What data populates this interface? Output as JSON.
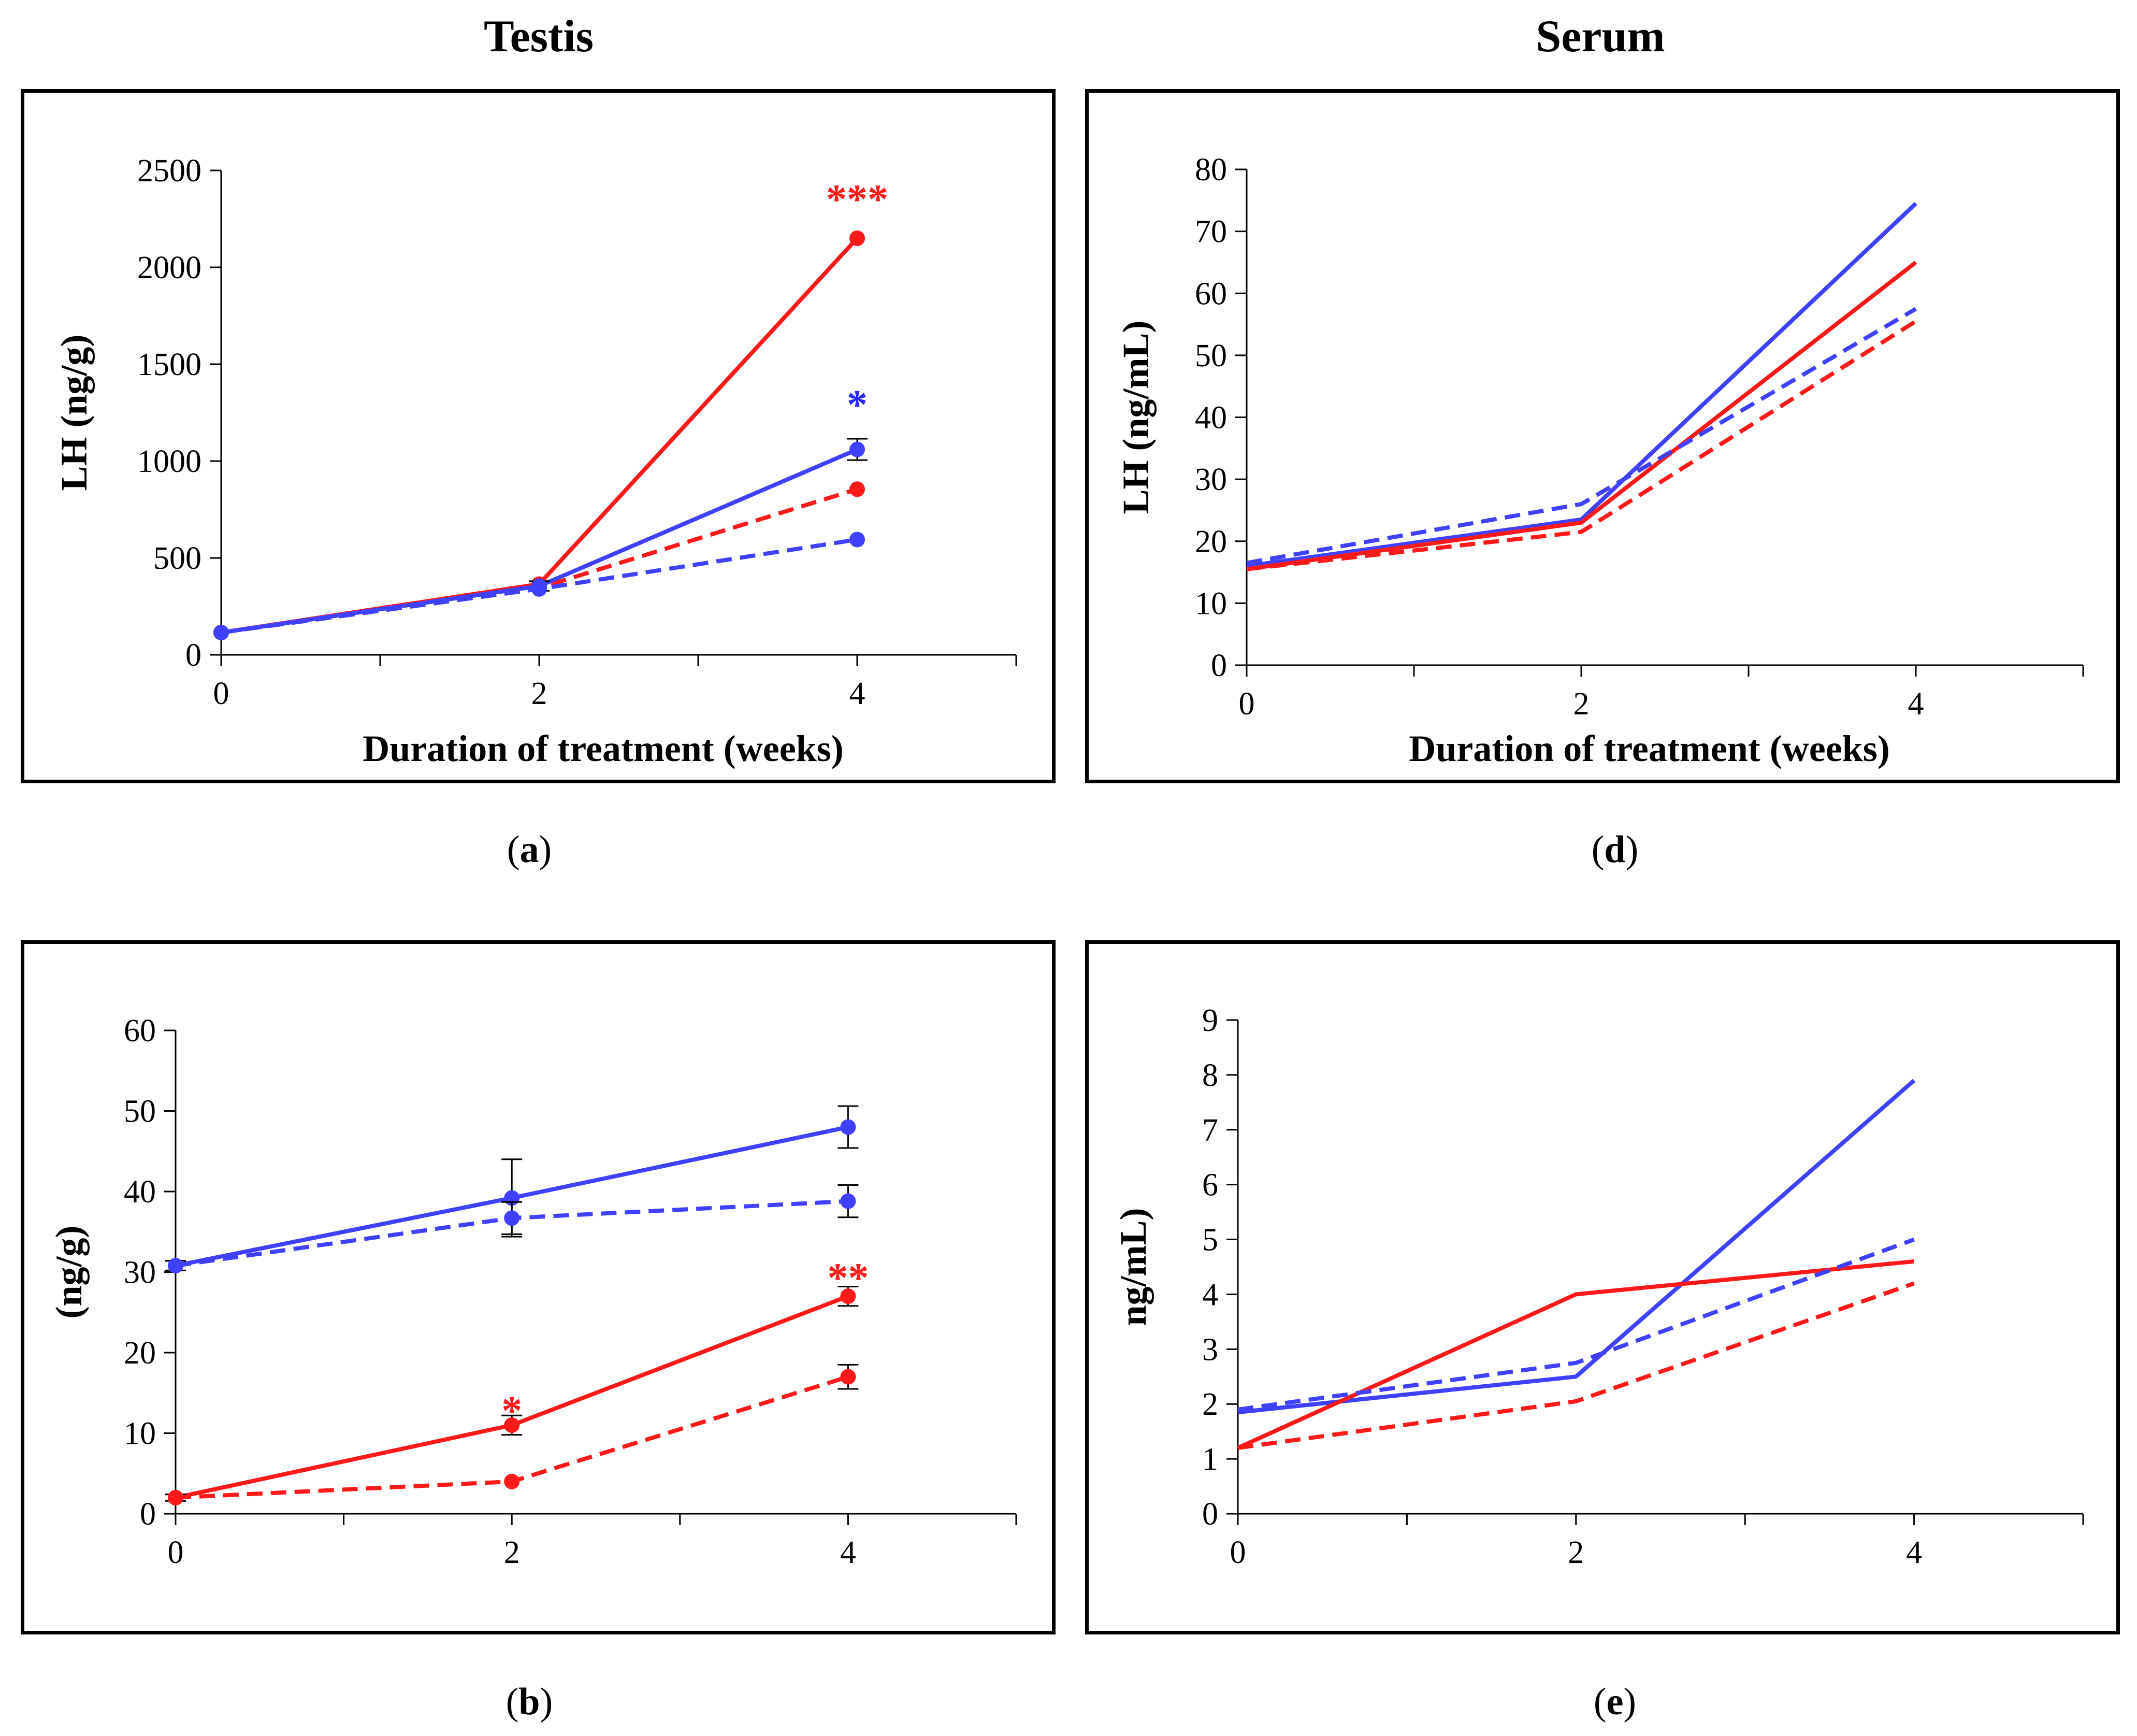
{
  "column_titles": {
    "left": "Testis",
    "right": "Serum"
  },
  "captions": {
    "a": {
      "open": "(",
      "letter": "a",
      "close": ")"
    },
    "b": {
      "open": "(",
      "letter": "b",
      "close": ")"
    },
    "d": {
      "open": "(",
      "letter": "d",
      "close": ")"
    },
    "e": {
      "open": "(",
      "letter": "e",
      "close": ")"
    }
  },
  "colors": {
    "red": "#ff1a1a",
    "blue": "#4040ff",
    "axis": "#000000",
    "sig_red": "#ff1a1a",
    "sig_blue": "#2626ff"
  },
  "chart_data": [
    {
      "id": "a",
      "type": "line",
      "title": "",
      "xlabel": "Duration of treatment (weeks)",
      "ylabel": "LH (ng/g)",
      "xlim": [
        0,
        5
      ],
      "ylim": [
        0,
        2500
      ],
      "xticks": [
        0,
        2,
        4
      ],
      "yticks": [
        0,
        500,
        1000,
        1500,
        2000,
        2500
      ],
      "x_minor": [
        1,
        3,
        5
      ],
      "x": [
        0,
        2,
        4
      ],
      "series": [
        {
          "name": "red solid",
          "color": "red",
          "dash": false,
          "markers": true,
          "values": [
            115,
            365,
            2150
          ],
          "errors": [
            0,
            0,
            0
          ]
        },
        {
          "name": "red dashed",
          "color": "red",
          "dash": true,
          "markers": true,
          "values": [
            115,
            345,
            855
          ],
          "errors": [
            0,
            0,
            0
          ]
        },
        {
          "name": "blue solid",
          "color": "blue",
          "dash": false,
          "markers": true,
          "values": [
            115,
            355,
            1060
          ],
          "errors": [
            0,
            25,
            55
          ]
        },
        {
          "name": "blue dashed",
          "color": "blue",
          "dash": true,
          "markers": true,
          "values": [
            115,
            340,
            595
          ],
          "errors": [
            0,
            0,
            0
          ]
        }
      ],
      "annotations": [
        {
          "text": "***",
          "x": 4,
          "y": 2360,
          "color": "sig_red"
        },
        {
          "text": "*",
          "x": 4,
          "y": 1300,
          "color": "sig_blue"
        }
      ]
    },
    {
      "id": "b",
      "type": "line",
      "title": "",
      "xlabel": "",
      "ylabel": "(ng/g)",
      "xlim": [
        0,
        5
      ],
      "ylim": [
        0,
        60
      ],
      "xticks": [
        0,
        2,
        4
      ],
      "yticks": [
        0,
        10,
        20,
        30,
        40,
        50,
        60
      ],
      "x_minor": [
        1,
        3,
        5
      ],
      "x": [
        0,
        2,
        4
      ],
      "series": [
        {
          "name": "blue solid",
          "color": "blue",
          "dash": false,
          "markers": true,
          "values": [
            30.8,
            39.2,
            48.0
          ],
          "errors": [
            0.6,
            4.8,
            2.6
          ]
        },
        {
          "name": "blue dashed",
          "color": "blue",
          "dash": true,
          "markers": true,
          "values": [
            30.8,
            36.7,
            38.8
          ],
          "errors": [
            0.6,
            2.0,
            2.0
          ]
        },
        {
          "name": "red solid",
          "color": "red",
          "dash": false,
          "markers": true,
          "values": [
            2.0,
            11.0,
            27.0
          ],
          "errors": [
            0.4,
            1.2,
            1.2
          ]
        },
        {
          "name": "red dashed",
          "color": "red",
          "dash": true,
          "markers": true,
          "values": [
            2.0,
            4.0,
            17.0
          ],
          "errors": [
            0.4,
            0,
            1.5
          ]
        }
      ],
      "annotations": [
        {
          "text": "**",
          "x": 4,
          "y": 29.5,
          "color": "sig_red"
        },
        {
          "text": "*",
          "x": 2,
          "y": 13.0,
          "color": "sig_red"
        }
      ]
    },
    {
      "id": "d",
      "type": "line",
      "title": "",
      "xlabel": "Duration of treatment (weeks)",
      "ylabel": "LH (ng/mL)",
      "xlim": [
        0,
        5
      ],
      "ylim": [
        0,
        80
      ],
      "xticks": [
        0,
        2,
        4
      ],
      "yticks": [
        0,
        10,
        20,
        30,
        40,
        50,
        60,
        70,
        80
      ],
      "x_minor": [
        1,
        3,
        5
      ],
      "x": [
        0,
        2,
        4
      ],
      "series": [
        {
          "name": "blue solid",
          "color": "blue",
          "dash": false,
          "markers": false,
          "values": [
            16.0,
            23.5,
            74.5
          ]
        },
        {
          "name": "red solid",
          "color": "red",
          "dash": false,
          "markers": false,
          "values": [
            15.5,
            23.0,
            65.0
          ]
        },
        {
          "name": "blue dashed",
          "color": "blue",
          "dash": true,
          "markers": false,
          "values": [
            16.5,
            26.0,
            57.5
          ]
        },
        {
          "name": "red dashed",
          "color": "red",
          "dash": true,
          "markers": false,
          "values": [
            15.5,
            21.5,
            55.5
          ]
        }
      ],
      "annotations": []
    },
    {
      "id": "e",
      "type": "line",
      "title": "",
      "xlabel": "",
      "ylabel": "ng/mL)",
      "xlim": [
        0,
        5
      ],
      "ylim": [
        0,
        9
      ],
      "xticks": [
        0,
        2,
        4
      ],
      "yticks": [
        0,
        1,
        2,
        3,
        4,
        5,
        6,
        7,
        8,
        9
      ],
      "x_minor": [
        1,
        3,
        5
      ],
      "x": [
        0,
        2,
        4
      ],
      "series": [
        {
          "name": "blue solid",
          "color": "blue",
          "dash": false,
          "markers": false,
          "values": [
            1.85,
            2.5,
            7.9
          ]
        },
        {
          "name": "red solid",
          "color": "red",
          "dash": false,
          "markers": false,
          "values": [
            1.2,
            4.0,
            4.6
          ]
        },
        {
          "name": "blue dashed",
          "color": "blue",
          "dash": true,
          "markers": false,
          "values": [
            1.9,
            2.75,
            5.0
          ]
        },
        {
          "name": "red dashed",
          "color": "red",
          "dash": true,
          "markers": false,
          "values": [
            1.2,
            2.05,
            4.2
          ]
        }
      ],
      "annotations": []
    }
  ]
}
